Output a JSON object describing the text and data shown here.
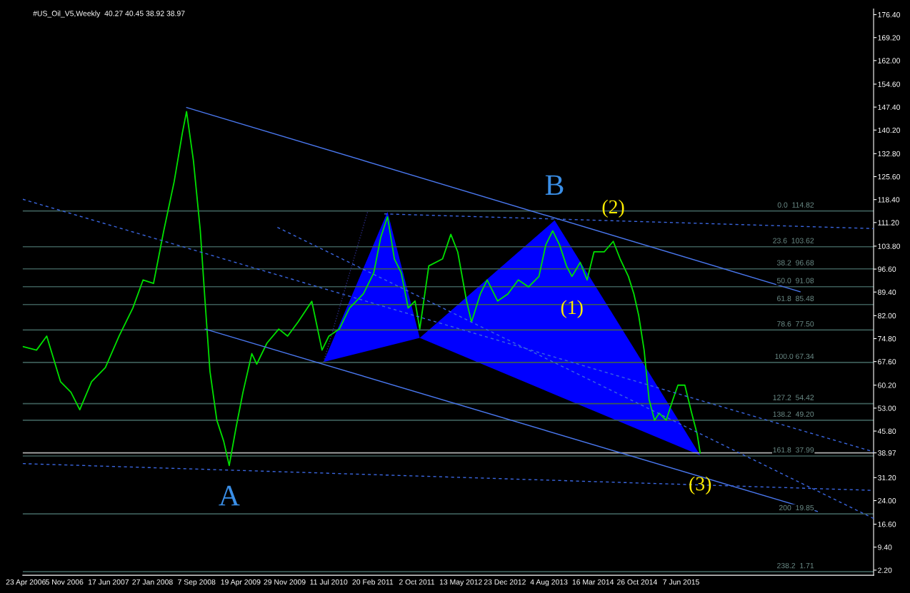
{
  "chart_data": {
    "type": "line",
    "title": "#US_Oil_V5,Weekly  40.27 40.45 38.92 38.97",
    "xlim": [
      "2006-04-07",
      "2018-02-10"
    ],
    "xticks": [
      {
        "value": "2006-04-23",
        "label": "23 Apr 2006"
      },
      {
        "value": "2006-11-05",
        "label": "5 Nov 2006"
      },
      {
        "value": "2007-06-17",
        "label": "17 Jun 2007"
      },
      {
        "value": "2008-01-27",
        "label": "27 Jan 2008"
      },
      {
        "value": "2008-09-07",
        "label": "7 Sep 2008"
      },
      {
        "value": "2009-04-19",
        "label": "19 Apr 2009"
      },
      {
        "value": "2009-11-29",
        "label": "29 Nov 2009"
      },
      {
        "value": "2010-07-11",
        "label": "11 Jul 2010"
      },
      {
        "value": "2011-02-20",
        "label": "20 Feb 2011"
      },
      {
        "value": "2011-10-02",
        "label": "2 Oct 2011"
      },
      {
        "value": "2012-05-13",
        "label": "13 May 2012"
      },
      {
        "value": "2012-12-23",
        "label": "23 Dec 2012"
      },
      {
        "value": "2013-08-04",
        "label": "4 Aug 2013"
      },
      {
        "value": "2014-03-16",
        "label": "16 Mar 2014"
      },
      {
        "value": "2014-10-26",
        "label": "26 Oct 2014"
      },
      {
        "value": "2015-06-07",
        "label": "7 Jun 2015"
      }
    ],
    "ylim": [
      0.6,
      178.2
    ],
    "yticks": [
      {
        "value": 2.2,
        "label": "2.20"
      },
      {
        "value": 9.4,
        "label": "9.40"
      },
      {
        "value": 16.6,
        "label": "16.60"
      },
      {
        "value": 24.0,
        "label": "24.00"
      },
      {
        "value": 31.2,
        "label": "31.20"
      },
      {
        "value": 38.97,
        "label": "38.97"
      },
      {
        "value": 45.8,
        "label": "45.80"
      },
      {
        "value": 53.0,
        "label": "53.00"
      },
      {
        "value": 60.2,
        "label": "60.20"
      },
      {
        "value": 67.6,
        "label": "67.60"
      },
      {
        "value": 74.8,
        "label": "74.80"
      },
      {
        "value": 82.0,
        "label": "82.00"
      },
      {
        "value": 89.4,
        "label": "89.40"
      },
      {
        "value": 96.6,
        "label": "96.60"
      },
      {
        "value": 103.8,
        "label": "103.80"
      },
      {
        "value": 111.2,
        "label": "111.20"
      },
      {
        "value": 118.4,
        "label": "118.40"
      },
      {
        "value": 125.6,
        "label": "125.60"
      },
      {
        "value": 132.8,
        "label": "132.80"
      },
      {
        "value": 140.2,
        "label": "140.20"
      },
      {
        "value": 147.4,
        "label": "147.40"
      },
      {
        "value": 154.6,
        "label": "154.60"
      },
      {
        "value": 162.0,
        "label": "162.00"
      },
      {
        "value": 169.2,
        "label": "169.20"
      },
      {
        "value": 176.4,
        "label": "176.40"
      }
    ],
    "grid": false,
    "legend": false,
    "marker": "none",
    "series": [
      {
        "type": "area",
        "color": "#0000ff",
        "x": [
          "2010-06-15",
          "2011-05-06",
          "2011-10-17"
        ],
        "values": [
          67.5,
          114.6,
          75.0
        ]
      },
      {
        "type": "area",
        "color": "#0000ff",
        "x": [
          "2011-10-17",
          "2013-09-02",
          "2015-09-12"
        ],
        "values": [
          75.0,
          111.9,
          38.2
        ]
      },
      {
        "color": "#00e000",
        "x": [
          "2006-04-07",
          "2006-06-16",
          "2006-08-07",
          "2006-10-16",
          "2006-12-08",
          "2007-01-22",
          "2007-03-23",
          "2007-06-01",
          "2007-08-10",
          "2007-10-19",
          "2007-12-10",
          "2008-02-01",
          "2008-03-24",
          "2008-05-16",
          "2008-06-27",
          "2008-07-18",
          "2008-08-22",
          "2008-09-26",
          "2008-10-20",
          "2008-11-14",
          "2008-12-19",
          "2009-01-23",
          "2009-02-20",
          "2009-03-27",
          "2009-05-01",
          "2009-06-15",
          "2009-07-10",
          "2009-08-31",
          "2009-10-30",
          "2009-12-14",
          "2010-02-05",
          "2010-04-16",
          "2010-06-07",
          "2010-07-12",
          "2010-09-03",
          "2010-10-25",
          "2011-01-03",
          "2011-02-25",
          "2011-04-01",
          "2011-05-06",
          "2011-06-10",
          "2011-07-15",
          "2011-08-19",
          "2011-09-23",
          "2011-10-17",
          "2011-12-02",
          "2012-02-10",
          "2012-03-23",
          "2012-04-27",
          "2012-06-11",
          "2012-07-06",
          "2012-08-20",
          "2012-09-24",
          "2012-11-16",
          "2013-01-07",
          "2013-03-01",
          "2013-04-22",
          "2013-06-14",
          "2013-07-19",
          "2013-08-23",
          "2013-09-27",
          "2013-11-01",
          "2013-11-29",
          "2014-01-10",
          "2014-02-14",
          "2014-03-21",
          "2014-05-12",
          "2014-06-27",
          "2014-08-01",
          "2014-09-12",
          "2014-10-10",
          "2014-11-03",
          "2014-12-01",
          "2014-12-26",
          "2015-01-23",
          "2015-02-16",
          "2015-03-23",
          "2015-04-27",
          "2015-05-22",
          "2015-06-26",
          "2015-07-31",
          "2015-08-28",
          "2015-09-12"
        ],
        "values": [
          72.3,
          71.2,
          75.6,
          61.3,
          58.0,
          52.5,
          61.3,
          65.7,
          75.6,
          84.4,
          93.2,
          92.1,
          108.6,
          124.0,
          139.4,
          146.0,
          130.6,
          108.6,
          86.6,
          64.6,
          49.2,
          42.6,
          35.0,
          47.0,
          58.0,
          70.1,
          66.8,
          73.4,
          77.8,
          75.6,
          80.0,
          86.5,
          71.2,
          75.6,
          77.8,
          84.4,
          88.8,
          95.4,
          106.4,
          113.0,
          99.8,
          95.4,
          84.4,
          86.6,
          77.8,
          97.6,
          99.8,
          107.5,
          102.0,
          86.6,
          80.0,
          88.8,
          93.2,
          86.6,
          88.8,
          93.2,
          91.0,
          94.3,
          104.2,
          108.6,
          104.2,
          97.6,
          94.3,
          98.7,
          93.2,
          102.0,
          102.0,
          105.3,
          99.8,
          94.3,
          88.8,
          82.2,
          71.2,
          55.8,
          49.2,
          51.4,
          49.2,
          55.8,
          60.2,
          60.2,
          51.4,
          44.8,
          38.97
        ]
      },
      {
        "color": "#4a78f0",
        "line_style": "solid",
        "x": [
          "2008-07-18",
          "2017-02-02"
        ],
        "values": [
          147.3,
          89.5
        ]
      },
      {
        "color": "#4a78f0",
        "line_style": "solid",
        "x": [
          "2008-10-20",
          "2017-04-30"
        ],
        "values": [
          77.8,
          20.6
        ]
      },
      {
        "color": "#3a66e0",
        "line_style": "dashed",
        "x": [
          "2006-04-07",
          "2018-02-10"
        ],
        "values": [
          118.5,
          39.3
        ]
      },
      {
        "color": "#3a66e0",
        "line_style": "dashed",
        "x": [
          "2009-10-23",
          "2018-02-10"
        ],
        "values": [
          109.7,
          18.4
        ]
      },
      {
        "color": "#3a66e0",
        "line_style": "dashed",
        "x": [
          "2011-04-20",
          "2018-02-10"
        ],
        "values": [
          113.9,
          109.3
        ]
      },
      {
        "color": "#3a66e0",
        "line_style": "dashed",
        "x": [
          "2006-04-07",
          "2018-02-10"
        ],
        "values": [
          35.6,
          27.2
        ]
      },
      {
        "color": "#2a2a80",
        "line_style": "dotted",
        "x": [
          "2010-06-15",
          "2011-01-25"
        ],
        "values": [
          67.5,
          114.6
        ]
      }
    ],
    "ref_lines": [
      {
        "axis": "y",
        "value": 114.82,
        "label": "0.0  114.82",
        "color": "#3c5c58"
      },
      {
        "axis": "y",
        "value": 103.62,
        "label": "23.6  103.62",
        "color": "#3c5c58"
      },
      {
        "axis": "y",
        "value": 96.68,
        "label": "38.2  96.68",
        "color": "#3c5c58"
      },
      {
        "axis": "y",
        "value": 91.08,
        "label": "50.0  91.08",
        "color": "#3c5c58"
      },
      {
        "axis": "y",
        "value": 85.48,
        "label": "61.8  85.48",
        "color": "#3c5c58"
      },
      {
        "axis": "y",
        "value": 77.5,
        "label": "78.6  77.50",
        "color": "#3c5c58"
      },
      {
        "axis": "y",
        "value": 67.34,
        "label": "100.0 67.34",
        "color": "#3c5c58"
      },
      {
        "axis": "y",
        "value": 54.42,
        "label": "127.2  54.42",
        "color": "#3c5c58"
      },
      {
        "axis": "y",
        "value": 49.2,
        "label": "138.2  49.20",
        "color": "#3c5c58"
      },
      {
        "axis": "y",
        "value": 37.99,
        "label": "161.8  37.99",
        "color": "#3c5c58"
      },
      {
        "axis": "y",
        "value": 19.85,
        "label": "200  19.85",
        "color": "#3c5c58"
      },
      {
        "axis": "y",
        "value": 1.71,
        "label": "238.2  1.71",
        "color": "#3c5c58"
      },
      {
        "axis": "y",
        "value": 38.97,
        "color": "#b0b0b0"
      }
    ],
    "annotations": [
      {
        "text": "A",
        "x": "2009-02-20",
        "y": 35.0
      },
      {
        "text": "B",
        "x": "2013-09-02",
        "y": 111.9
      },
      {
        "text": "(1)",
        "x": "2013-11-29",
        "y": 94.3
      },
      {
        "text": "(2)",
        "x": "2014-06-27",
        "y": 105.3
      },
      {
        "text": "(3)",
        "x": "2015-09-12",
        "y": 38.97
      }
    ]
  }
}
